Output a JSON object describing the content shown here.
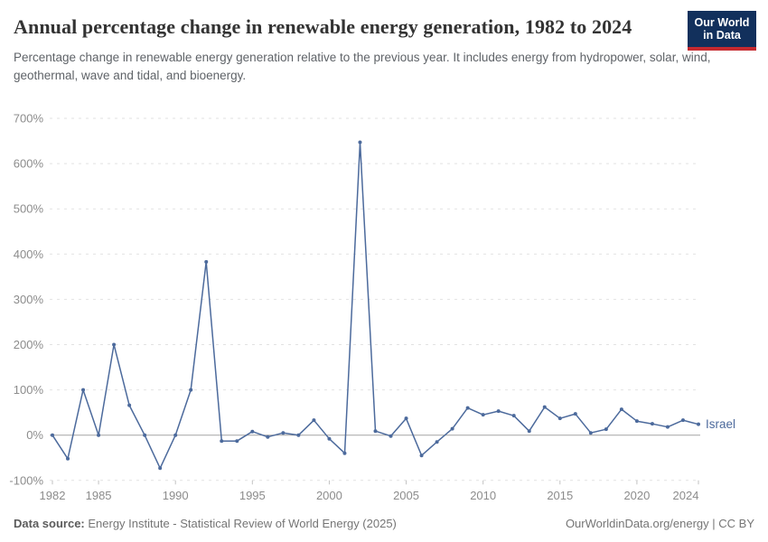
{
  "header": {
    "title": "Annual percentage change in renewable energy generation, 1982 to 2024",
    "subtitle": "Percentage change in renewable energy generation relative to the previous year. It includes energy from hydropower, solar, wind, geothermal, wave and tidal, and bioenergy.",
    "logo": {
      "line1": "Our World",
      "line2": "in Data",
      "bg": "#12305c",
      "accent": "#c5292f"
    }
  },
  "footer": {
    "source_label": "Data source:",
    "source_text": " Energy Institute - Statistical Review of World Energy (2025)",
    "rights": "OurWorldinData.org/energy | CC BY"
  },
  "chart_data": {
    "type": "line",
    "title": "Annual percentage change in renewable energy generation, 1982 to 2024",
    "unit": "%",
    "grid": true,
    "ylim": [
      -100,
      700
    ],
    "yticks": [
      700,
      600,
      500,
      400,
      300,
      200,
      100,
      0,
      -100
    ],
    "xticks": [
      1982,
      1985,
      1990,
      1995,
      2000,
      2005,
      2010,
      2015,
      2020,
      2024
    ],
    "x": [
      1982,
      1983,
      1984,
      1985,
      1986,
      1987,
      1988,
      1989,
      1990,
      1991,
      1992,
      1993,
      1994,
      1995,
      1996,
      1997,
      1998,
      1999,
      2000,
      2001,
      2002,
      2003,
      2004,
      2005,
      2006,
      2007,
      2008,
      2009,
      2010,
      2011,
      2012,
      2013,
      2014,
      2015,
      2016,
      2017,
      2018,
      2019,
      2020,
      2021,
      2022,
      2023,
      2024
    ],
    "series": [
      {
        "name": "Israel",
        "color": "#4c6a9c",
        "values": [
          0,
          -52,
          100,
          0,
          200,
          66,
          0,
          -73,
          0,
          100,
          383,
          -13,
          -13,
          8,
          -4,
          5,
          0,
          33,
          -8,
          -40,
          647,
          9,
          -2,
          37,
          -45,
          -15,
          14,
          60,
          45,
          53,
          43,
          9,
          62,
          37,
          47,
          5,
          13,
          57,
          31,
          25,
          18,
          33,
          24
        ]
      }
    ],
    "colors": {
      "gridline": "#e2e2e2",
      "zero_line": "#a3a3a3",
      "tick_label": "#8c8c8c",
      "tick_mark": "#c2c2c2"
    }
  }
}
